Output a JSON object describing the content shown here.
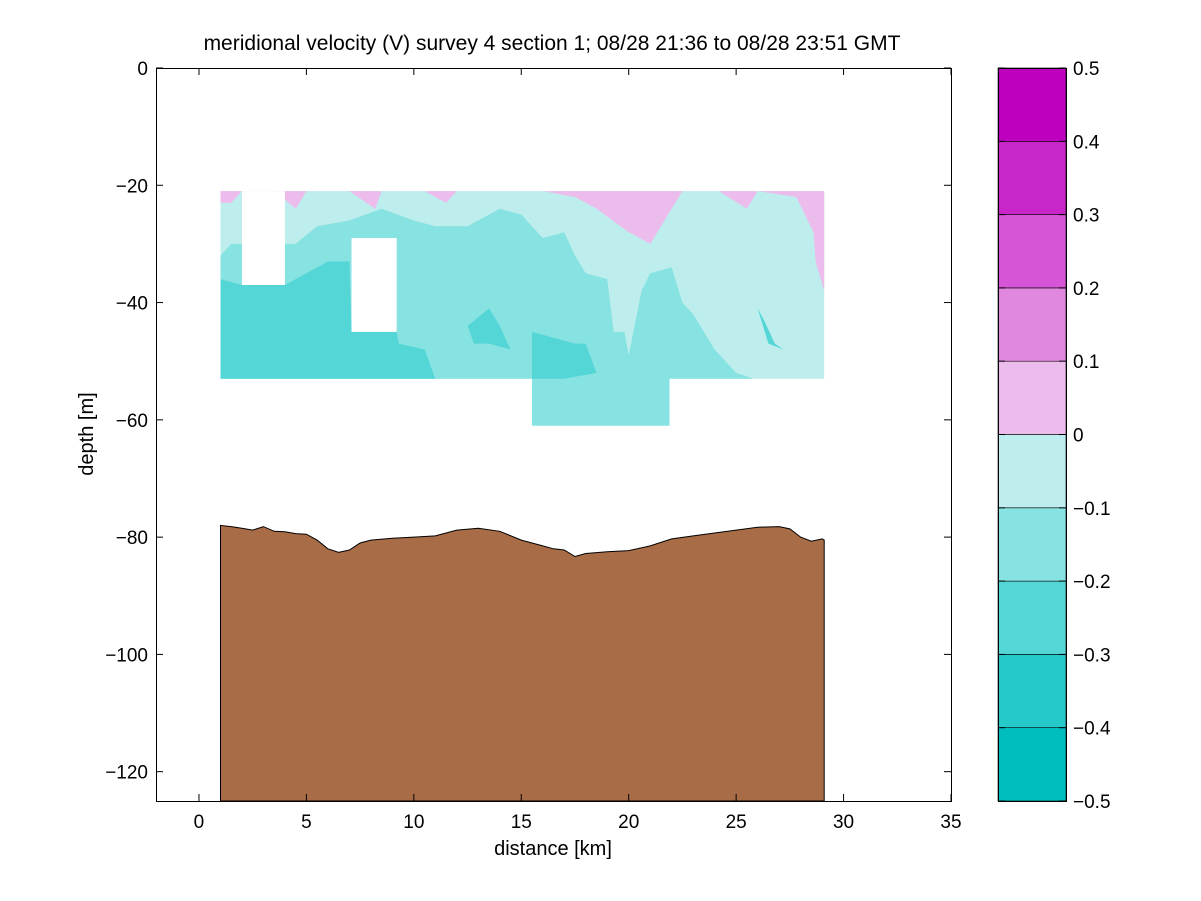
{
  "chart_data": {
    "type": "contour-section",
    "title": "meridional velocity (V) survey 4 section 1; 08/28 21:36 to 08/28 23:51 GMT",
    "xlabel": "distance [km]",
    "ylabel": "depth [m]",
    "xlim": [
      -2,
      35
    ],
    "ylim": [
      -125,
      0
    ],
    "x_ticks": [
      0,
      5,
      10,
      15,
      20,
      25,
      30,
      35
    ],
    "x_tick_labels": [
      "0",
      "5",
      "10",
      "15",
      "20",
      "25",
      "30",
      "35"
    ],
    "y_ticks": [
      0,
      -20,
      -40,
      -60,
      -80,
      -100,
      -120
    ],
    "y_tick_labels": [
      "0",
      "−20",
      "−40",
      "−60",
      "−80",
      "−100",
      "−120"
    ],
    "grid": false,
    "colorbar": {
      "position": "right",
      "levels": [
        -0.5,
        -0.4,
        -0.3,
        -0.2,
        -0.1,
        0,
        0.1,
        0.2,
        0.3,
        0.4,
        0.5
      ],
      "tick_labels": [
        "−0.5",
        "−0.4",
        "−0.3",
        "−0.2",
        "−0.1",
        "0",
        "0.1",
        "0.2",
        "0.3",
        "0.4",
        "0.5"
      ],
      "colors": [
        "#00bebe",
        "#26c9c9",
        "#55d6d6",
        "#87e2e2",
        "#bdeded",
        "#ecbdec",
        "#e087e0",
        "#d655d6",
        "#c826c8",
        "#be00be"
      ]
    },
    "bathymetry": {
      "color": "#a86c46",
      "x": [
        1.0,
        1.5,
        2.0,
        2.5,
        3.0,
        3.5,
        4.0,
        4.5,
        5.0,
        5.5,
        6.0,
        6.5,
        7.0,
        7.5,
        8.0,
        9.0,
        10.0,
        11.0,
        12.0,
        13.0,
        14.0,
        15.0,
        16.0,
        16.5,
        17.0,
        17.5,
        18.0,
        19.0,
        20.0,
        21.0,
        22.0,
        23.0,
        24.0,
        25.0,
        26.0,
        27.0,
        27.5,
        28.0,
        28.5,
        29.0,
        29.1
      ],
      "depth": [
        -78.0,
        -78.2,
        -78.5,
        -78.8,
        -78.2,
        -79.0,
        -79.1,
        -79.4,
        -79.5,
        -80.5,
        -82.0,
        -82.6,
        -82.2,
        -81.0,
        -80.5,
        -80.2,
        -80.0,
        -79.8,
        -78.8,
        -78.5,
        -79.0,
        -80.5,
        -81.5,
        -82.0,
        -82.2,
        -83.3,
        -82.8,
        -82.5,
        -82.3,
        -81.5,
        -80.3,
        -79.8,
        -79.3,
        -78.8,
        -78.3,
        -78.2,
        -78.6,
        -80.0,
        -80.7,
        -80.3,
        -80.5
      ]
    },
    "velocity_field": {
      "data_extent": {
        "x": [
          1.0,
          29.1
        ],
        "depth": [
          -21,
          -53
        ],
        "deep_segment": {
          "x": [
            15.5,
            21.9
          ],
          "depth": [
            -53,
            -61
          ]
        }
      },
      "gaps": [
        {
          "x": [
            2.0,
            4.0
          ],
          "depth": [
            -21,
            -37
          ]
        },
        {
          "x": [
            7.1,
            9.2
          ],
          "depth": [
            -29,
            -45
          ]
        }
      ],
      "regions": [
        {
          "level": "-0.1 to 0",
          "polygon": [
            [
              1.0,
              -21
            ],
            [
              29.1,
              -21
            ],
            [
              29.1,
              -53
            ],
            [
              1.0,
              -53
            ]
          ]
        },
        {
          "level": "0 to 0.1",
          "polygon": [
            [
              1.0,
              -21
            ],
            [
              29.1,
              -21
            ],
            [
              29.1,
              -38
            ],
            [
              28.7,
              -33
            ],
            [
              28.6,
              -28
            ],
            [
              27.8,
              -22
            ],
            [
              26.0,
              -21
            ],
            [
              25.5,
              -24
            ],
            [
              24.2,
              -21
            ],
            [
              22.5,
              -21
            ],
            [
              21.0,
              -30
            ],
            [
              20.0,
              -28
            ],
            [
              18.5,
              -24
            ],
            [
              17.5,
              -22
            ],
            [
              16.0,
              -21
            ],
            [
              12.0,
              -21
            ],
            [
              11.5,
              -23
            ],
            [
              10.5,
              -21
            ],
            [
              8.5,
              -21
            ],
            [
              8.2,
              -24
            ],
            [
              7.0,
              -21
            ],
            [
              5.0,
              -21
            ],
            [
              4.5,
              -24
            ],
            [
              3.5,
              -21
            ],
            [
              2.0,
              -21
            ],
            [
              1.5,
              -23
            ],
            [
              1.0,
              -23
            ]
          ]
        },
        {
          "level": "-0.2 to -0.1",
          "polygon": [
            [
              1.0,
              -32
            ],
            [
              1.5,
              -30
            ],
            [
              2.0,
              -30
            ],
            [
              4.5,
              -30
            ],
            [
              5.5,
              -27
            ],
            [
              7.0,
              -26
            ],
            [
              8.5,
              -24
            ],
            [
              10.0,
              -26
            ],
            [
              11.0,
              -27
            ],
            [
              12.5,
              -27
            ],
            [
              14.0,
              -24
            ],
            [
              15.0,
              -25
            ],
            [
              16.0,
              -29
            ],
            [
              17.0,
              -28
            ],
            [
              17.5,
              -32
            ],
            [
              18.0,
              -35
            ],
            [
              19.0,
              -36
            ],
            [
              19.3,
              -45
            ],
            [
              19.8,
              -45
            ],
            [
              20.0,
              -49
            ],
            [
              20.6,
              -38
            ],
            [
              21.0,
              -35
            ],
            [
              22.0,
              -34
            ],
            [
              22.5,
              -40
            ],
            [
              23.0,
              -42
            ],
            [
              24.0,
              -48
            ],
            [
              25.0,
              -52
            ],
            [
              25.8,
              -53
            ],
            [
              15.5,
              -53
            ],
            [
              15.5,
              -61
            ],
            [
              21.9,
              -61
            ],
            [
              21.9,
              -53
            ],
            [
              1.0,
              -53
            ]
          ]
        },
        {
          "level": "-0.3 to -0.2",
          "polygon": [
            [
              1.0,
              -36
            ],
            [
              2.0,
              -37
            ],
            [
              4.0,
              -37
            ],
            [
              5.0,
              -35
            ],
            [
              6.0,
              -33
            ],
            [
              7.0,
              -33
            ],
            [
              7.1,
              -45
            ],
            [
              9.2,
              -45
            ],
            [
              9.3,
              -47
            ],
            [
              10.5,
              -48
            ],
            [
              11.0,
              -53
            ],
            [
              1.0,
              -53
            ]
          ]
        },
        {
          "level": "-0.3 to -0.2",
          "polygon": [
            [
              12.5,
              -44
            ],
            [
              13.5,
              -41
            ],
            [
              14.0,
              -44
            ],
            [
              14.5,
              -48
            ],
            [
              13.5,
              -47
            ],
            [
              12.8,
              -47
            ]
          ]
        },
        {
          "level": "-0.3 to -0.2",
          "polygon": [
            [
              15.5,
              -45
            ],
            [
              16.5,
              -46
            ],
            [
              17.5,
              -47
            ],
            [
              18.0,
              -47
            ],
            [
              18.5,
              -52
            ],
            [
              17.0,
              -53
            ],
            [
              15.5,
              -53
            ]
          ]
        },
        {
          "level": "-0.3 to -0.2",
          "polygon": [
            [
              26.0,
              -41
            ],
            [
              26.3,
              -43
            ],
            [
              26.8,
              -47
            ],
            [
              27.2,
              -48
            ],
            [
              26.5,
              -47
            ]
          ]
        }
      ]
    }
  }
}
